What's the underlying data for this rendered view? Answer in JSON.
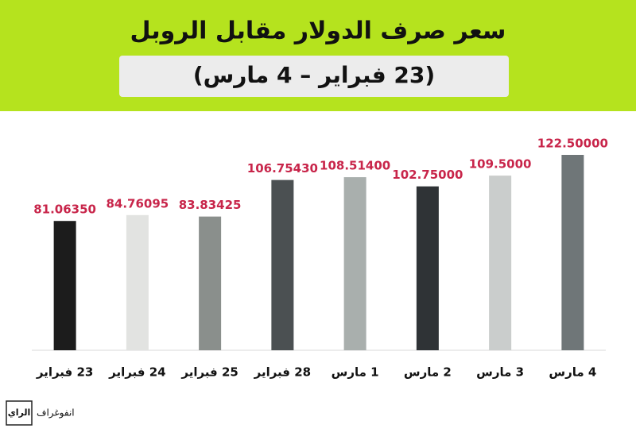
{
  "chart_data": {
    "type": "bar",
    "title": "سعر صرف الدولار مقابل الروبل",
    "subtitle": "(23 فبراير – 4 مارس)",
    "categories": [
      "23 فبراير",
      "24 فبراير",
      "25 فبراير",
      "28 فبراير",
      "1 مارس",
      "2 مارس",
      "3 مارس",
      "4 مارس"
    ],
    "values": [
      81.0635,
      84.76095,
      83.83425,
      106.7543,
      108.514,
      102.75,
      109.5,
      122.5
    ],
    "value_labels": [
      "81.06350",
      "84.76095",
      "83.83425",
      "106.75430",
      "108.51400",
      "102.75000",
      "109.5000",
      "122.50000"
    ],
    "colors": [
      "#1c1c1c",
      "#e2e3e1",
      "#8a8f8c",
      "#4b5052",
      "#a9afad",
      "#2f3336",
      "#cacdcc",
      "#6f7678"
    ],
    "label_color": "#c8254a"
  },
  "footer": {
    "source": "انفوغراف",
    "logo": "الراي"
  }
}
